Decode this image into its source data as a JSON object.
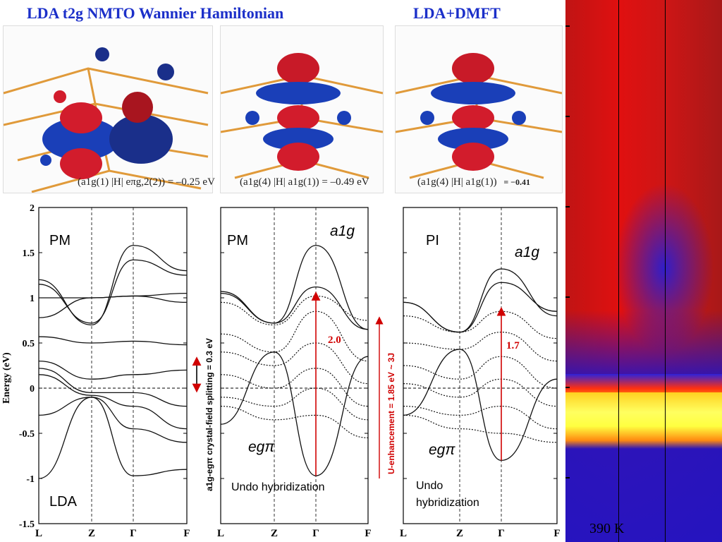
{
  "titles": {
    "left": "LDA t2g NMTO Wannier Hamiltonian",
    "right": "LDA+DMFT"
  },
  "orbital_plots": [
    {
      "matrix_element": "(a1g(1) |H| eπg,2(2)) = –0.25 eV"
    },
    {
      "matrix_element": "(a1g(4) |H| a1g(1)) = –0.49 eV"
    },
    {
      "matrix_element": "(a1g(4) |H| a1g(1))",
      "value": "= −0.41"
    }
  ],
  "y_axis": {
    "label": "Energy (eV)",
    "ticks": [
      "2",
      "1.5",
      "1",
      "0.5",
      "0",
      "-0.5",
      "-1",
      "-1.5"
    ]
  },
  "k_labels": [
    "L",
    "Z",
    "Γ",
    "F"
  ],
  "panels": [
    {
      "tag": "PM",
      "bottom_tag": "LDA"
    },
    {
      "tag": "PM",
      "orbital_top": "a1g",
      "orbital_bottom": "egπ",
      "annotation": "Undo hybridization",
      "gap": "2.0"
    },
    {
      "tag": "PI",
      "orbital_top": "a1g",
      "orbital_bottom": "egπ",
      "annotation_l1": "Undo",
      "annotation_l2": "hybridization",
      "gap": "1.7"
    }
  ],
  "side_labels": {
    "crystal_field": "a1g-egπ crystal-field splitting = 0.3 eV",
    "u_enhancement": "U-enhancement = 1.85 eV ~ 3J"
  },
  "spectral_map": {
    "temperature": "390 K"
  },
  "colors": {
    "title": "#1b2fc9",
    "arrow": "#d00000",
    "map_low": "#1a10c8",
    "map_mid": "#e01010",
    "map_high": "#ffff40"
  },
  "chart_data": {
    "type": "line",
    "xlabel": "",
    "ylabel": "Energy (eV)",
    "ylim": [
      -1.5,
      2
    ],
    "x": [
      "L",
      "Z",
      "Γ",
      "F"
    ],
    "series_lda": [
      {
        "values": [
          1.2,
          0.7,
          1.58,
          1.3
        ]
      },
      {
        "values": [
          1.15,
          0.72,
          1.42,
          1.25
        ]
      },
      {
        "values": [
          1.0,
          1.0,
          1.02,
          0.95
        ]
      },
      {
        "values": [
          0.78,
          1.0,
          1.02,
          1.05
        ]
      },
      {
        "values": [
          0.57,
          0.5,
          0.52,
          0.48
        ]
      },
      {
        "values": [
          0.3,
          0.1,
          0.15,
          0.2
        ]
      },
      {
        "values": [
          0.22,
          -0.05,
          -0.05,
          -0.2
        ]
      },
      {
        "values": [
          0.15,
          -0.08,
          -0.2,
          -0.45
        ]
      },
      {
        "values": [
          -0.3,
          -0.1,
          -0.45,
          -0.6
        ]
      },
      {
        "values": [
          -1.0,
          -0.1,
          -0.97,
          -0.9
        ]
      }
    ],
    "series_a1g_pm": [
      {
        "values": [
          1.07,
          0.72,
          1.58,
          0.65
        ]
      },
      {
        "values": [
          1.05,
          0.72,
          1.12,
          0.65
        ]
      },
      {
        "values": [
          -0.4,
          0.4,
          -0.97,
          0.35
        ]
      }
    ],
    "series_egpi_pm": [
      {
        "values": [
          0.95,
          0.7,
          1.02,
          0.75
        ]
      },
      {
        "values": [
          0.6,
          0.4,
          0.85,
          0.3
        ]
      },
      {
        "values": [
          0.4,
          0.25,
          0.5,
          0.05
        ]
      },
      {
        "values": [
          0.15,
          0.0,
          0.22,
          -0.2
        ]
      },
      {
        "values": [
          -0.1,
          -0.2,
          0.0,
          -0.35
        ]
      },
      {
        "values": [
          -0.2,
          -0.35,
          -0.3,
          -0.55
        ]
      }
    ],
    "series_a1g_pi": [
      {
        "values": [
          0.95,
          0.62,
          1.32,
          0.8
        ]
      },
      {
        "values": [
          0.95,
          0.62,
          1.17,
          0.85
        ]
      },
      {
        "values": [
          -0.3,
          0.43,
          -0.8,
          0.1
        ]
      }
    ],
    "series_egpi_pi": [
      {
        "values": [
          0.8,
          0.62,
          0.85,
          0.55
        ]
      },
      {
        "values": [
          0.5,
          0.43,
          0.62,
          0.3
        ]
      },
      {
        "values": [
          0.25,
          0.1,
          0.35,
          0.0
        ]
      },
      {
        "values": [
          0.05,
          -0.1,
          0.1,
          -0.2
        ]
      },
      {
        "values": [
          -0.2,
          -0.3,
          -0.2,
          -0.45
        ]
      },
      {
        "values": [
          -0.3,
          -0.45,
          -0.5,
          -0.6
        ]
      }
    ]
  }
}
